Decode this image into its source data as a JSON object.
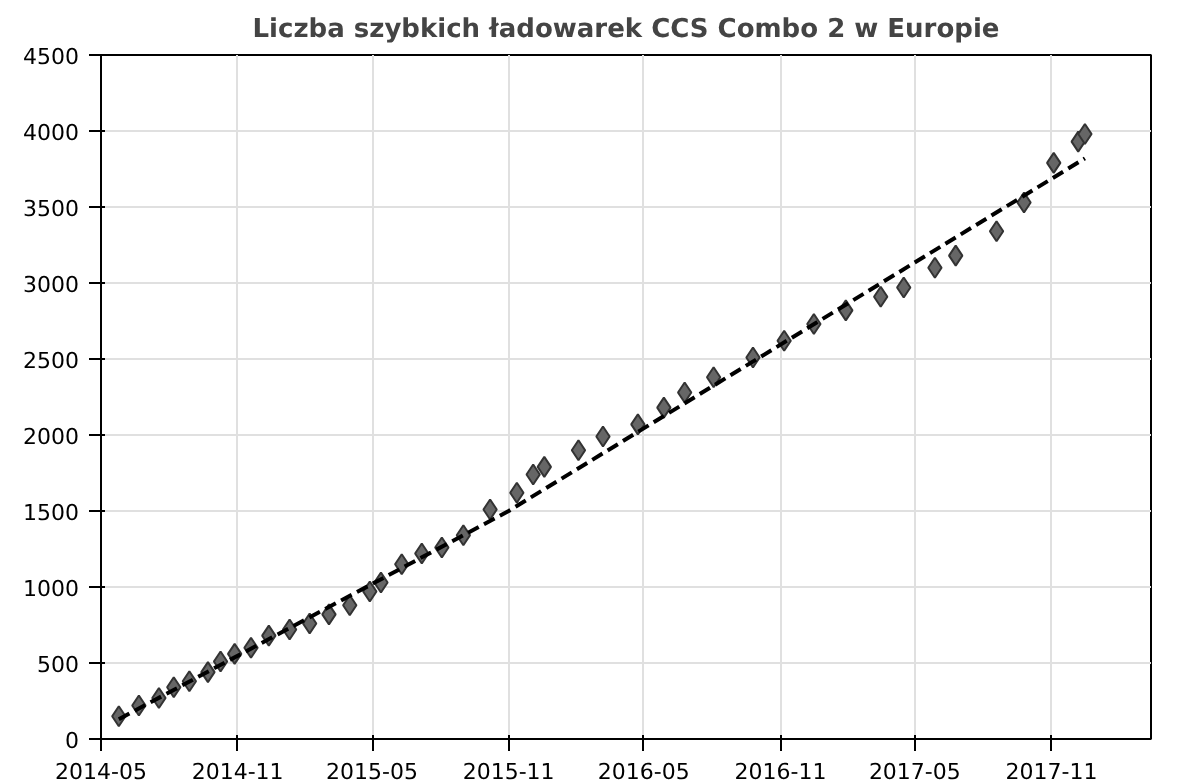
{
  "chart_data": {
    "type": "scatter",
    "title": "Liczba szybkich ładowarek CCS Combo 2 w Europie",
    "xlim": [
      "2014-05-01",
      "2018-03-15"
    ],
    "ylim": [
      0,
      4500
    ],
    "xticks": [
      "2014-05",
      "2014-11",
      "2015-05",
      "2015-11",
      "2016-05",
      "2016-11",
      "2017-05",
      "2017-11"
    ],
    "yticks": [
      0,
      500,
      1000,
      1500,
      2000,
      2500,
      3000,
      3500,
      4000,
      4500
    ],
    "grid": true,
    "series": [
      {
        "marker": "diamond",
        "color": "#666666",
        "x": [
          "2014-05-25",
          "2014-06-21",
          "2014-07-18",
          "2014-08-07",
          "2014-08-28",
          "2014-09-22",
          "2014-10-09",
          "2014-10-28",
          "2014-11-19",
          "2014-12-13",
          "2015-01-10",
          "2015-02-06",
          "2015-03-04",
          "2015-04-01",
          "2015-04-28",
          "2015-05-13",
          "2015-06-10",
          "2015-07-07",
          "2015-08-03",
          "2015-09-01",
          "2015-10-07",
          "2015-11-12",
          "2015-12-04",
          "2015-12-19",
          "2016-02-03",
          "2016-03-07",
          "2016-04-23",
          "2016-05-28",
          "2016-06-25",
          "2016-08-03",
          "2016-09-25",
          "2016-11-06",
          "2016-12-16",
          "2017-01-28",
          "2017-03-16",
          "2017-04-16",
          "2017-05-28",
          "2017-06-25",
          "2017-08-19",
          "2017-09-25",
          "2017-11-04",
          "2017-12-07",
          "2017-12-16"
        ],
        "values": [
          150,
          220,
          270,
          340,
          380,
          440,
          510,
          560,
          600,
          680,
          720,
          760,
          820,
          880,
          970,
          1030,
          1150,
          1220,
          1260,
          1340,
          1510,
          1620,
          1740,
          1790,
          1900,
          1990,
          2070,
          2180,
          2280,
          2380,
          2510,
          2620,
          2730,
          2820,
          2910,
          2970,
          3100,
          3180,
          3340,
          3530,
          3790,
          3930,
          3980
        ]
      },
      {
        "type": "line",
        "marker": "none",
        "line_style": "dashed",
        "color": "#000000",
        "x": [
          "2014-05-25",
          "2015-11-01",
          "2017-12-16"
        ],
        "values": [
          130,
          1500,
          3820
        ]
      }
    ]
  }
}
